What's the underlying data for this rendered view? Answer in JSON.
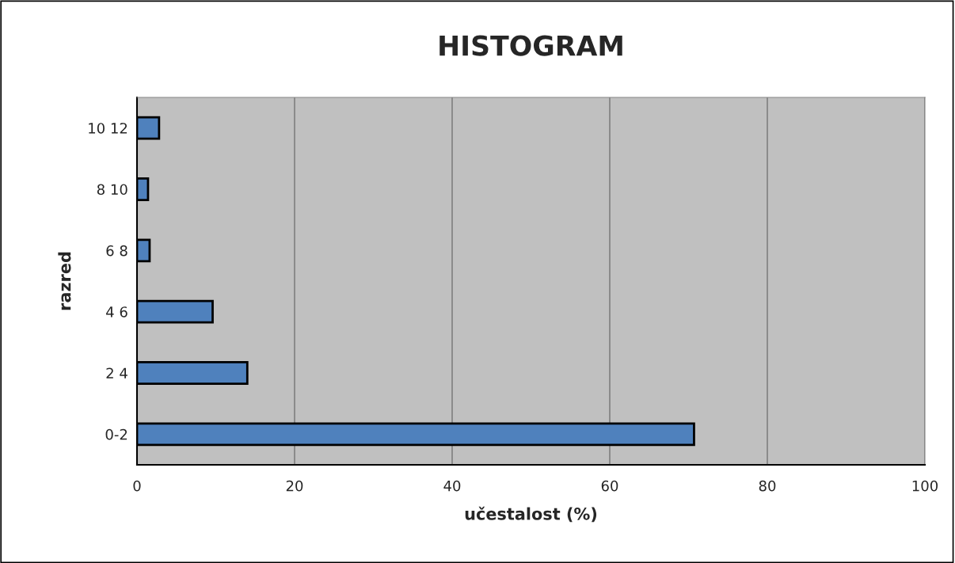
{
  "chart_data": {
    "type": "bar",
    "orientation": "horizontal",
    "title": "HISTOGRAM",
    "xlabel": "učestalost (%)",
    "ylabel": "razred",
    "categories": [
      "10 12",
      "8 10",
      "6 8",
      "4 6",
      "2 4",
      "0-2"
    ],
    "values": [
      2.8,
      1.4,
      1.6,
      9.6,
      14.0,
      70.7
    ],
    "color": "#4f81bd",
    "xlim": [
      0,
      100
    ],
    "xticks": [
      0,
      20,
      40,
      60,
      80,
      100
    ],
    "grid": "x"
  }
}
